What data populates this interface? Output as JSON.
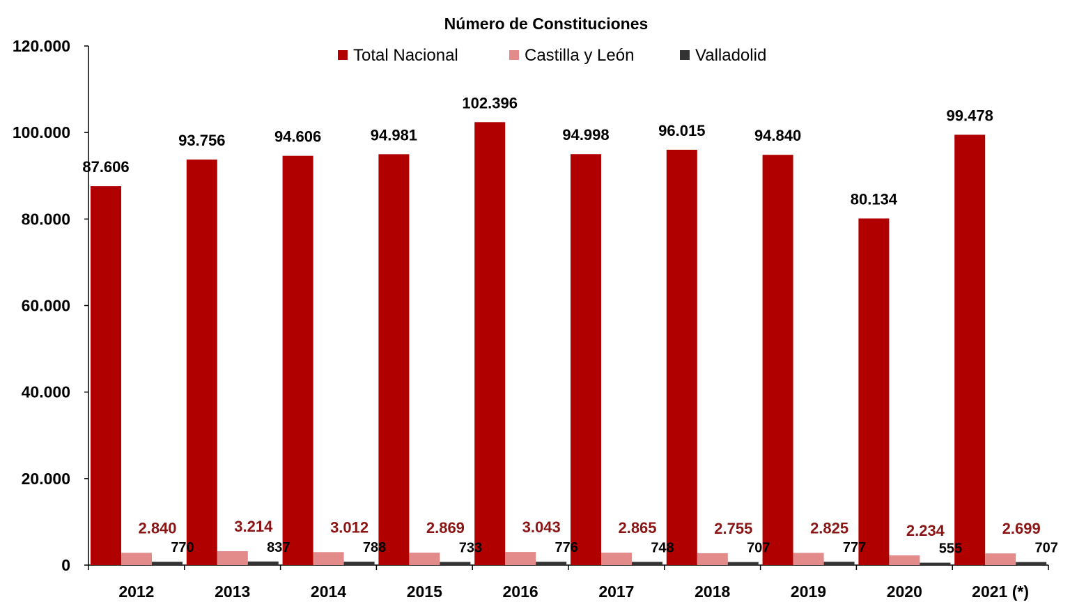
{
  "chart_data": {
    "type": "bar",
    "title": "Número de Constituciones",
    "xlabel": "",
    "ylabel": "",
    "ylim": [
      0,
      120000
    ],
    "yticks": [
      0,
      20000,
      40000,
      60000,
      80000,
      100000,
      120000
    ],
    "ytick_labels": [
      "0",
      "20.000",
      "40.000",
      "60.000",
      "80.000",
      "100.000",
      "120.000"
    ],
    "grid": false,
    "legend_position": "top-center",
    "categories": [
      "2012",
      "2013",
      "2014",
      "2015",
      "2016",
      "2017",
      "2018",
      "2019",
      "2020",
      "2021 (*)"
    ],
    "series": [
      {
        "name": "Total Nacional",
        "color": "#B00000",
        "label_color": "#000000",
        "values": [
          87606,
          93756,
          94606,
          94981,
          102396,
          94998,
          96015,
          94840,
          80134,
          99478
        ],
        "labels": [
          "87.606",
          "93.756",
          "94.606",
          "94.981",
          "102.396",
          "94.998",
          "96.015",
          "94.840",
          "80.134",
          "99.478"
        ]
      },
      {
        "name": "Castilla y León",
        "color": "#E38A8A",
        "label_color": "#8B1414",
        "values": [
          2840,
          3214,
          3012,
          2869,
          3043,
          2865,
          2755,
          2825,
          2234,
          2699
        ],
        "labels": [
          "2.840",
          "3.214",
          "3.012",
          "2.869",
          "3.043",
          "2.865",
          "2.755",
          "2.825",
          "2.234",
          "2.699"
        ]
      },
      {
        "name": "Valladolid",
        "color": "#333333",
        "label_color": "#000000",
        "values": [
          770,
          837,
          788,
          733,
          776,
          748,
          707,
          777,
          555,
          707
        ],
        "labels": [
          "770",
          "837",
          "788",
          "733",
          "776",
          "748",
          "707",
          "777",
          "555",
          "707"
        ]
      }
    ]
  }
}
